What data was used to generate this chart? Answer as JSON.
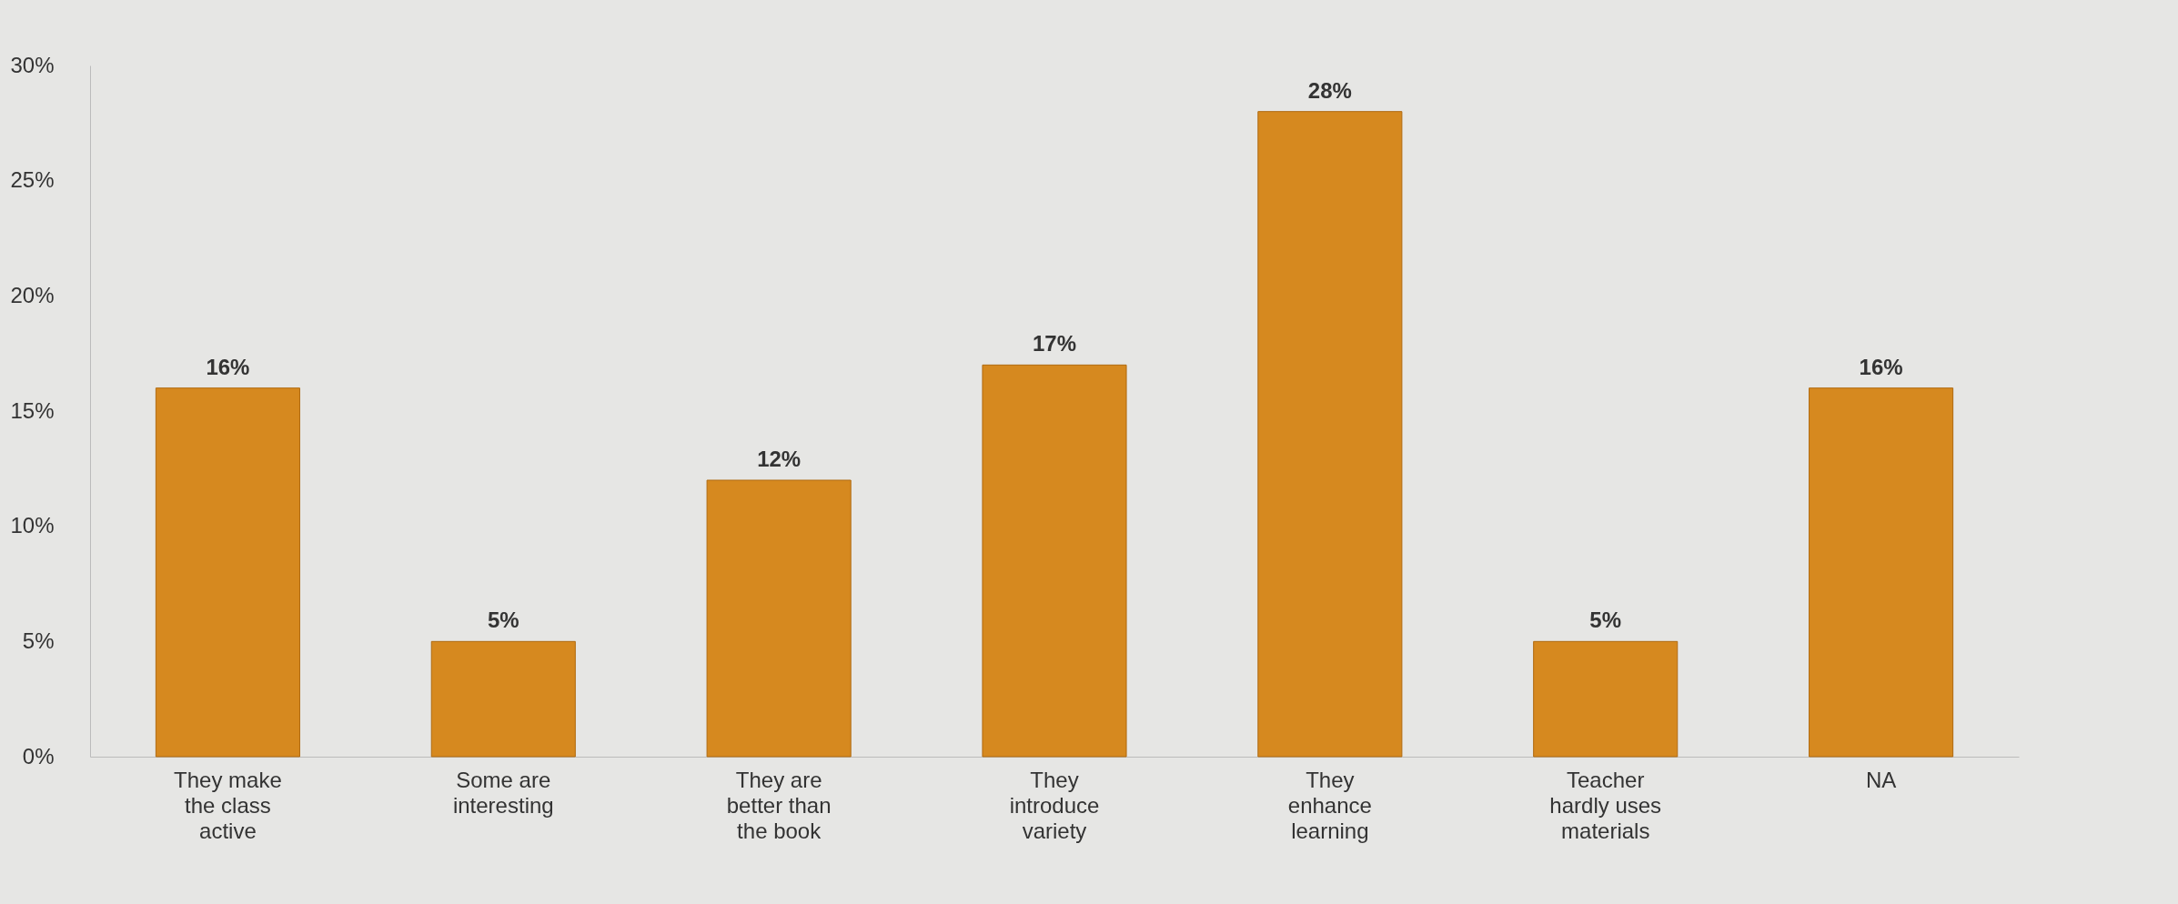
{
  "chart_data": {
    "type": "bar",
    "categories": [
      "They make the class active",
      "Some are interesting",
      "They are better than the book",
      "They introduce variety",
      "They enhance learning",
      "Teacher hardly uses materials",
      "NA"
    ],
    "values": [
      16,
      5,
      12,
      17,
      28,
      5,
      16
    ],
    "value_labels": [
      "16%",
      "5%",
      "12%",
      "17%",
      "28%",
      "5%",
      "16%"
    ],
    "color": "#d6891f",
    "ylim": [
      0,
      30
    ],
    "yticks": [
      {
        "value": 0,
        "label": "0%"
      },
      {
        "value": 5,
        "label": "5%"
      },
      {
        "value": 10,
        "label": "10%"
      },
      {
        "value": 15,
        "label": "15%"
      },
      {
        "value": 20,
        "label": "20%"
      },
      {
        "value": 25,
        "label": "25%"
      },
      {
        "value": 30,
        "label": "30%"
      }
    ],
    "grid": false
  }
}
